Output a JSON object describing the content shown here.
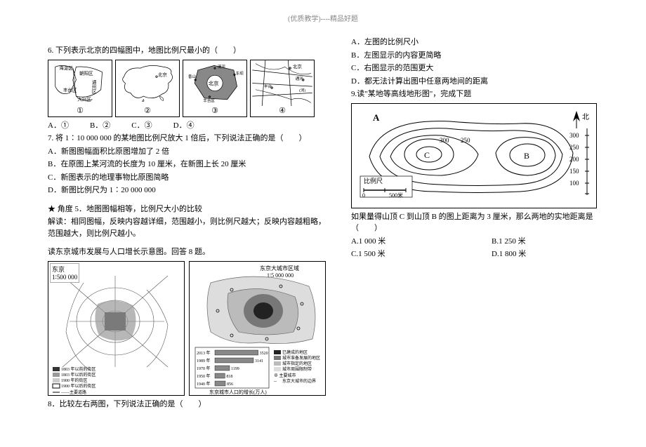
{
  "header": "(优质教学)----精品好题",
  "q6": {
    "stem": "6. 下列表示北京的四幅图中，地图比例尺最小的（　　）",
    "map1_labels": [
      "海淀区",
      "朝阳区",
      "通州区",
      "丰台区",
      "大兴区"
    ],
    "map2_label": "北京",
    "map3_labels": [
      "清河",
      "香山",
      "北京",
      "丰台区",
      "东坝"
    ],
    "map4_labels": [
      "北京",
      "通河",
      "丰台",
      "(河)"
    ],
    "nums": [
      "①",
      "②",
      "③",
      "④"
    ],
    "optA": "A．①",
    "optB": "B．②",
    "optC": "C．③",
    "optD": "D．④"
  },
  "q7": {
    "stem": "7. 将 1∶10 000 000 的某地图比例尺放大 1 倍后，下列说法正确的是（　　）",
    "A": "A．新图图幅面积比原图增加了 2 倍",
    "B": "B．在原图上某河流的长度为 10 厘米，在新图上长 20 厘米",
    "C": "C．新图表示的地理事物比原图简略",
    "D": "D．新图比例尺为 1∶20 000 000"
  },
  "angle5": {
    "title": "★ 角度 5．地图图幅相等，比例尺大小的比较",
    "body": "解读：相同图幅，反映内容越详细，范围越小，则比例尺越大；反映内容越粗略，范围越大，则比例尺越小。"
  },
  "q8_intro": "读东京城市发展与人口增长示意图。回答 8 题。",
  "tokyo": {
    "left_title": "东京",
    "left_scale": "1∶500 000",
    "right_title": "东京大城市区域",
    "right_scale": "1∶5 000 000",
    "legend_left": [
      "1803 年以前的街区",
      "1803 年以后的街区",
      "1900 年的街区",
      "1900 年以后的街区",
      "——主要道路"
    ],
    "barchart": {
      "title": "东京城市人口的增长(万人)",
      "rows": [
        {
          "year": "2013 年",
          "value": 3520
        },
        {
          "year": "1989 年",
          "value": 3141
        },
        {
          "year": "1970 年",
          "value": 1199
        },
        {
          "year": "1950 年",
          "value": 818
        },
        {
          "year": "1940 年",
          "value": 856
        }
      ],
      "xmax": 4000
    },
    "legend_right": [
      "已建成的地区",
      "城市准备发展的地区",
      "城市指定的地区",
      "城市周围限制带",
      "⊕ 主要城市",
      "东京大城市的边界"
    ]
  },
  "q8": {
    "stem": "8．比较左右两图，下列说法正确的是（　　）",
    "A": "A．左图的比例尺小",
    "B": "B．左图显示的内容更简略",
    "C": "C．右图显示的范围更大",
    "D": "D．都无法计算出图中任意两地间的距离"
  },
  "q9": {
    "intro": "9.读\"某地等高线地形图\"，完成下题",
    "contour": {
      "north": "北",
      "A_label": "A",
      "B_label": "B",
      "C_label": "C",
      "values": [
        "300",
        "250",
        "300",
        "250",
        "200",
        "150",
        "100"
      ],
      "scale_title": "比例尺",
      "scale_labels": [
        "0",
        "500米"
      ]
    },
    "stem": "如果量得山顶 C 到山顶 B 的图上距离为 3 厘米，那么两地的实地距离是（　　）",
    "A": "A.1 000 米",
    "B": "B.1 250 米",
    "C": "C.1 500 米",
    "D": "D.1 800 米"
  }
}
